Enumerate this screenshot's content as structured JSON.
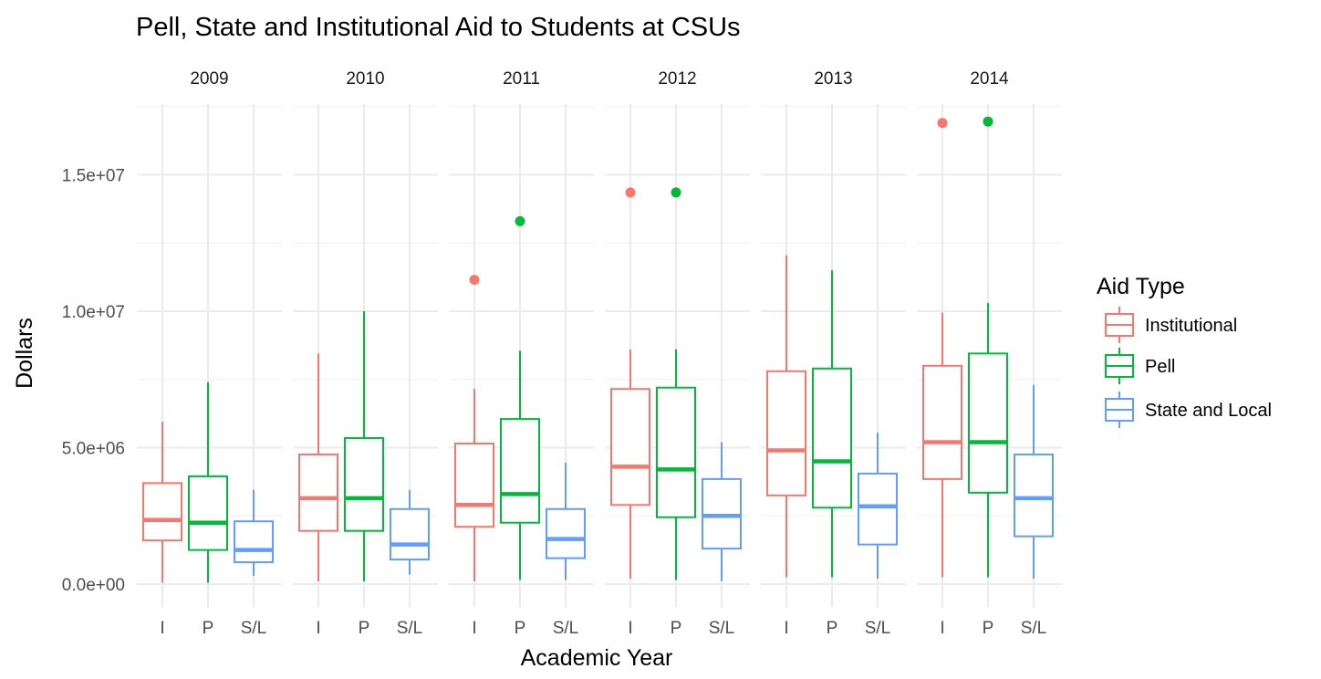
{
  "chart_data": {
    "type": "boxplot",
    "title": "Pell, State and Institutional Aid to Students at CSUs",
    "xlabel": "Academic Year",
    "ylabel": "Dollars",
    "ylim": [
      0,
      17500000
    ],
    "yticks": [
      0,
      5000000,
      10000000,
      15000000
    ],
    "ytick_labels": [
      "0.0e+00",
      "5.0e+06",
      "1.0e+07",
      "1.5e+07"
    ],
    "categories": [
      "I",
      "P",
      "S/L"
    ],
    "legend": {
      "title": "Aid Type",
      "position": "right",
      "entries": [
        "Institutional",
        "Pell",
        "State and Local"
      ]
    },
    "colors": {
      "I": "#F8766D",
      "P": "#00BA38",
      "S/L": "#619CFF"
    },
    "grid": true,
    "panels": [
      {
        "year": "2009",
        "boxes": [
          {
            "cat": "I",
            "min": 50000,
            "q1": 1600000,
            "median": 2350000,
            "q3": 3700000,
            "max": 5950000,
            "outliers": []
          },
          {
            "cat": "P",
            "min": 50000,
            "q1": 1250000,
            "median": 2250000,
            "q3": 3950000,
            "max": 7400000,
            "outliers": []
          },
          {
            "cat": "S/L",
            "min": 300000,
            "q1": 800000,
            "median": 1250000,
            "q3": 2300000,
            "max": 3450000,
            "outliers": []
          }
        ]
      },
      {
        "year": "2010",
        "boxes": [
          {
            "cat": "I",
            "min": 100000,
            "q1": 1950000,
            "median": 3150000,
            "q3": 4750000,
            "max": 8450000,
            "outliers": []
          },
          {
            "cat": "P",
            "min": 100000,
            "q1": 1950000,
            "median": 3150000,
            "q3": 5350000,
            "max": 10000000,
            "outliers": []
          },
          {
            "cat": "S/L",
            "min": 350000,
            "q1": 900000,
            "median": 1450000,
            "q3": 2750000,
            "max": 3450000,
            "outliers": []
          }
        ]
      },
      {
        "year": "2011",
        "boxes": [
          {
            "cat": "I",
            "min": 100000,
            "q1": 2100000,
            "median": 2900000,
            "q3": 5150000,
            "max": 7150000,
            "outliers": [
              11150000
            ]
          },
          {
            "cat": "P",
            "min": 150000,
            "q1": 2250000,
            "median": 3300000,
            "q3": 6050000,
            "max": 8550000,
            "outliers": [
              13300000
            ]
          },
          {
            "cat": "S/L",
            "min": 150000,
            "q1": 950000,
            "median": 1650000,
            "q3": 2750000,
            "max": 4450000,
            "outliers": []
          }
        ]
      },
      {
        "year": "2012",
        "boxes": [
          {
            "cat": "I",
            "min": 200000,
            "q1": 2900000,
            "median": 4300000,
            "q3": 7150000,
            "max": 8600000,
            "outliers": [
              14350000
            ]
          },
          {
            "cat": "P",
            "min": 150000,
            "q1": 2450000,
            "median": 4200000,
            "q3": 7200000,
            "max": 8600000,
            "outliers": [
              14350000
            ]
          },
          {
            "cat": "S/L",
            "min": 100000,
            "q1": 1300000,
            "median": 2500000,
            "q3": 3850000,
            "max": 5200000,
            "outliers": []
          }
        ]
      },
      {
        "year": "2013",
        "boxes": [
          {
            "cat": "I",
            "min": 250000,
            "q1": 3250000,
            "median": 4900000,
            "q3": 7800000,
            "max": 12050000,
            "outliers": []
          },
          {
            "cat": "P",
            "min": 250000,
            "q1": 2800000,
            "median": 4500000,
            "q3": 7900000,
            "max": 11500000,
            "outliers": []
          },
          {
            "cat": "S/L",
            "min": 200000,
            "q1": 1450000,
            "median": 2850000,
            "q3": 4050000,
            "max": 5550000,
            "outliers": []
          }
        ]
      },
      {
        "year": "2014",
        "boxes": [
          {
            "cat": "I",
            "min": 250000,
            "q1": 3850000,
            "median": 5200000,
            "q3": 8000000,
            "max": 9950000,
            "outliers": [
              16900000
            ]
          },
          {
            "cat": "P",
            "min": 250000,
            "q1": 3350000,
            "median": 5200000,
            "q3": 8450000,
            "max": 10300000,
            "outliers": [
              16950000
            ]
          },
          {
            "cat": "S/L",
            "min": 200000,
            "q1": 1750000,
            "median": 3150000,
            "q3": 4750000,
            "max": 7300000,
            "outliers": []
          }
        ]
      }
    ]
  }
}
